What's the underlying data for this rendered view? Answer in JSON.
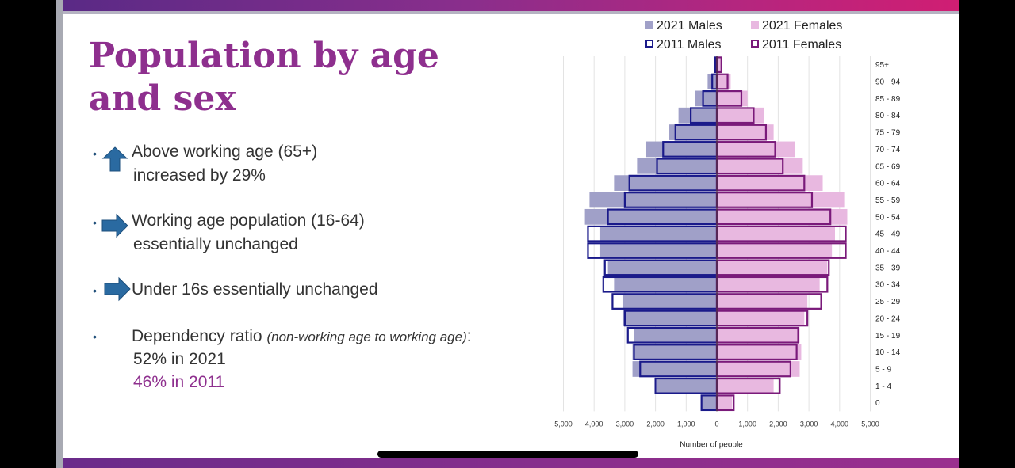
{
  "slide": {
    "title_lines": [
      "Population by age",
      "and sex"
    ],
    "bullets": [
      {
        "icon": "arrow-up-icon",
        "lines": [
          "Above working age (65+)",
          "increased by 29%"
        ]
      },
      {
        "icon": "arrow-right-icon",
        "lines": [
          "Working age population (16-64)",
          "essentially unchanged"
        ]
      },
      {
        "icon": "arrow-right-icon",
        "lines": [
          "Under 16s essentially unchanged"
        ]
      },
      {
        "icon": "none",
        "lead": "Dependency ratio",
        "note": "(non-working age to working age)",
        "suffix": ":",
        "lines": [
          "52% in 2021",
          "46% in 2011"
        ]
      }
    ],
    "colors": {
      "title": "#8e2f8e",
      "arrow": "#2a6aa1",
      "highlight": "#8e2f8e"
    }
  },
  "chart_data": {
    "type": "bar",
    "orientation": "horizontal",
    "subtype": "population-pyramid",
    "categories": [
      "0",
      "1 - 4",
      "5 - 9",
      "10 - 14",
      "15 - 19",
      "20 - 24",
      "25 - 29",
      "30 - 34",
      "35 - 39",
      "40 - 44",
      "45 - 49",
      "50 - 54",
      "55 - 59",
      "60 - 64",
      "65 - 69",
      "70 - 74",
      "75 - 79",
      "80 - 84",
      "85 - 89",
      "90 - 94",
      "95+"
    ],
    "series": [
      {
        "name": "2021 Males",
        "style": "filled",
        "color": "#a0a0c8",
        "values": [
          500,
          1950,
          2750,
          2750,
          2700,
          3050,
          3050,
          3350,
          3550,
          3800,
          3800,
          4300,
          4150,
          3350,
          2600,
          2300,
          1550,
          1250,
          700,
          300,
          100
        ]
      },
      {
        "name": "2021 Females",
        "style": "filled",
        "color": "#e8b8e0",
        "values": [
          500,
          1850,
          2700,
          2750,
          2700,
          2850,
          2950,
          3350,
          3600,
          3750,
          3850,
          4250,
          4150,
          3450,
          2800,
          2550,
          1850,
          1550,
          1000,
          450,
          150
        ]
      },
      {
        "name": "2011 Males",
        "style": "outline",
        "color": "#1a1a8a",
        "values": [
          500,
          2000,
          2500,
          2700,
          2900,
          3000,
          3400,
          3700,
          3650,
          4200,
          4200,
          3550,
          3000,
          2850,
          1950,
          1750,
          1350,
          850,
          450,
          150,
          50
        ]
      },
      {
        "name": "2011 Females",
        "style": "outline",
        "color": "#7a1a7a",
        "values": [
          550,
          2050,
          2400,
          2600,
          2650,
          2950,
          3400,
          3600,
          3650,
          4200,
          4200,
          3700,
          3100,
          2850,
          2150,
          1900,
          1600,
          1200,
          800,
          350,
          150
        ]
      }
    ],
    "x_ticks": [
      "5,000",
      "4,000",
      "3,000",
      "2,000",
      "1,000",
      "0",
      "1,000",
      "2,000",
      "3,000",
      "4,000",
      "5,000"
    ],
    "xlim": [
      -5000,
      5000
    ],
    "xlabel": "Number of people",
    "ylabel": "",
    "title": "",
    "legend": "top",
    "grid": true
  }
}
